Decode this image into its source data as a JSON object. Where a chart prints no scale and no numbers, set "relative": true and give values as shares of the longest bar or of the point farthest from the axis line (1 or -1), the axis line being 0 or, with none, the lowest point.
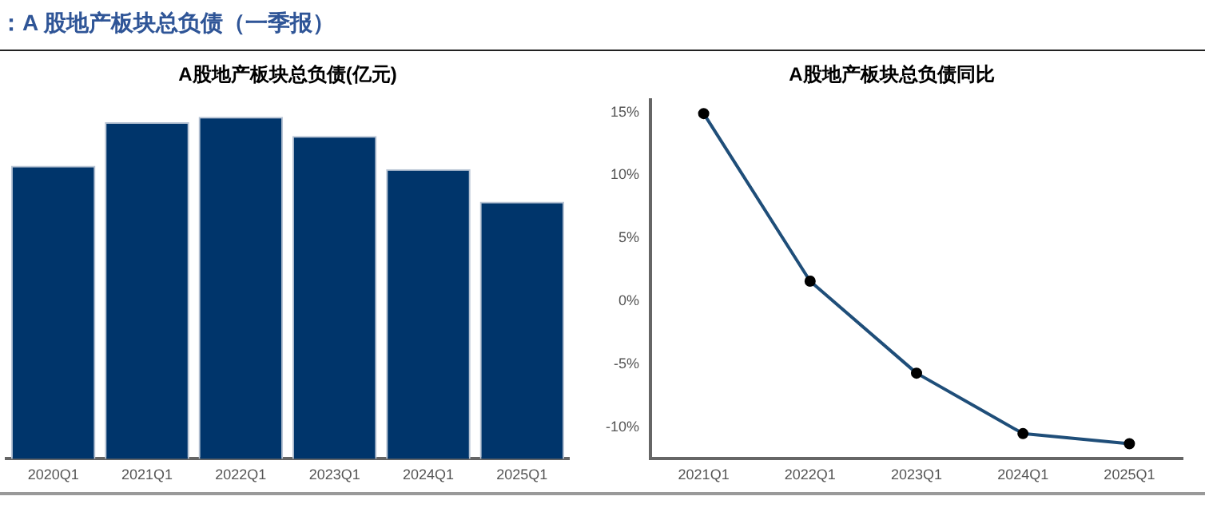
{
  "chart_data": [
    {
      "type": "bar",
      "title": "A股地产板块总负债(亿元)",
      "annotations": [
        "：A 股地产板块总负债（一季报）"
      ],
      "categories": [
        "2020Q1",
        "2021Q1",
        "2022Q1",
        "2023Q1",
        "2024Q1",
        "2025Q1"
      ],
      "values": [
        0.857,
        0.984,
        1,
        0.944,
        0.847,
        0.752
      ],
      "color": "#00356b",
      "relative": true
    },
    {
      "type": "line",
      "title": "A股地产板块总负债同比",
      "categories": [
        "2021Q1",
        "2022Q1",
        "2023Q1",
        "2024Q1",
        "2025Q1"
      ],
      "values": [
        14.9,
        1.6,
        -5.7,
        -10.5,
        -11.3
      ],
      "color": "#1f4e79",
      "marker": "circle",
      "ylim": [
        -12.5,
        16
      ],
      "yticks": [
        {
          "value": -10,
          "label": "-10%"
        },
        {
          "value": -5,
          "label": "-5%"
        },
        {
          "value": 0,
          "label": "0%"
        },
        {
          "value": 5,
          "label": "5%"
        },
        {
          "value": 10,
          "label": "10%"
        },
        {
          "value": 15,
          "label": "15%"
        }
      ]
    }
  ]
}
